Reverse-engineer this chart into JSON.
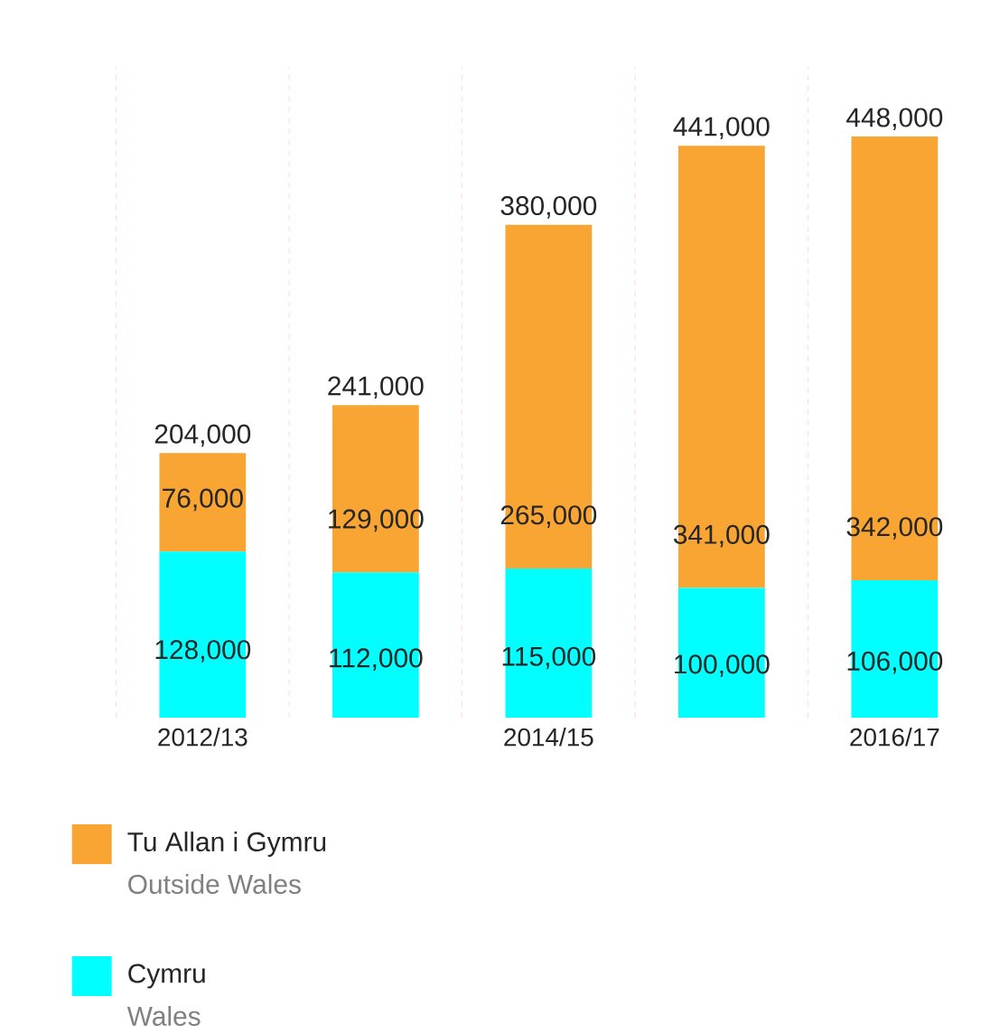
{
  "chart_data": {
    "type": "bar",
    "stacked": true,
    "categories": [
      "2012/13",
      null,
      "2014/15",
      null,
      "2016/17"
    ],
    "series": [
      {
        "name": "Cymru",
        "color": "#00ffff",
        "values": [
          128000,
          112000,
          115000,
          100000,
          106000
        ],
        "value_labels": [
          "128,000",
          "112,000",
          "115,000",
          "100,000",
          "106,000"
        ]
      },
      {
        "name": "Tu Allan i Gymru",
        "color": "#f9a533",
        "values": [
          76000,
          129000,
          265000,
          341000,
          342000
        ],
        "value_labels": [
          "76,000",
          "129,000",
          "265,000",
          "341,000",
          "342,000"
        ]
      }
    ],
    "totals": [
      "204,000",
      "241,000",
      "380,000",
      "441,000",
      "448,000"
    ],
    "grid": "x",
    "legend": "bottom",
    "tick_labels": "x",
    "annotations": [
      "Wales",
      "Outside Wales"
    ]
  }
}
